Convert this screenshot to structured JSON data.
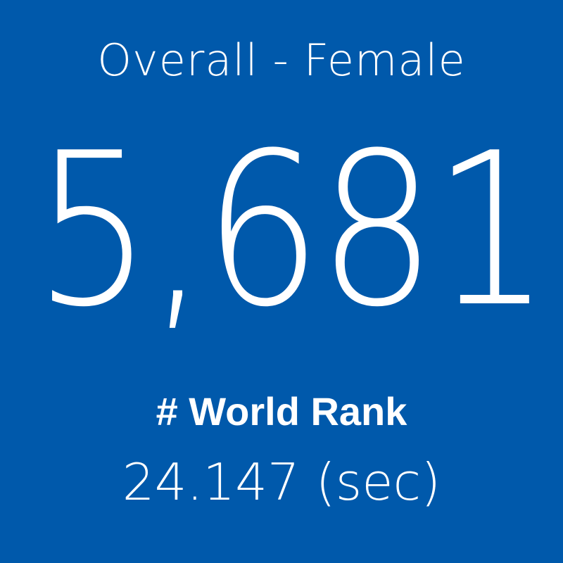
{
  "tile": {
    "title": "Overall - Female",
    "value": "5,681",
    "label": "# World Rank",
    "time": "24.147 (sec)"
  }
}
